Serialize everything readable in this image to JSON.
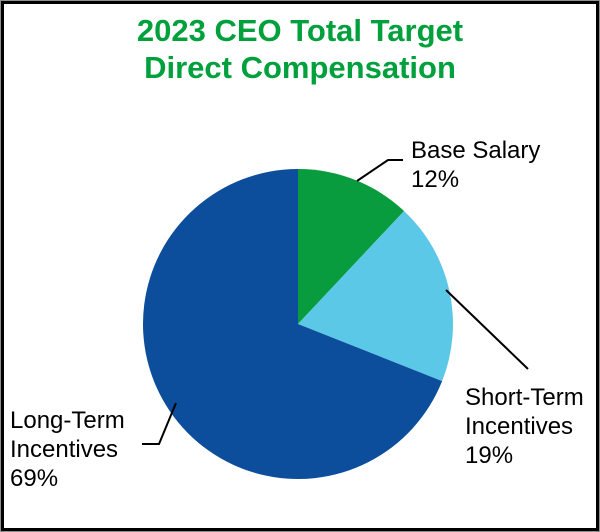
{
  "window": {
    "background_color": "#ffffff",
    "frame_border_color": "#000000",
    "frame_outer_edge_color": "#8f8f8f"
  },
  "title": {
    "line1": "2023 CEO Total Target",
    "line2": "Direct Compensation",
    "color": "#00a03c"
  },
  "labels": {
    "base_salary": {
      "line1": "Base Salary",
      "pct": "12%"
    },
    "short_term": {
      "line1": "Short-Term",
      "line2": "Incentives",
      "pct": "19%"
    },
    "long_term": {
      "line1": "Long-Term",
      "line2": "Incentives",
      "pct": "69%"
    }
  },
  "chart_data": {
    "type": "pie",
    "title": "2023 CEO Total Target Direct Compensation",
    "start_angle_deg_from_top": 0,
    "direction": "clockwise",
    "slices": [
      {
        "label": "Base Salary",
        "value_pct": 12,
        "color": "#089c3e"
      },
      {
        "label": "Short-Term Incentives",
        "value_pct": 19,
        "color": "#5cc8e8"
      },
      {
        "label": "Long-Term Incentives",
        "value_pct": 69,
        "color": "#0c4e9c"
      }
    ],
    "legend": "none",
    "label_style": "external-with-leader-lines",
    "leader_line_color": "#000000",
    "label_text_color": "#000000"
  }
}
